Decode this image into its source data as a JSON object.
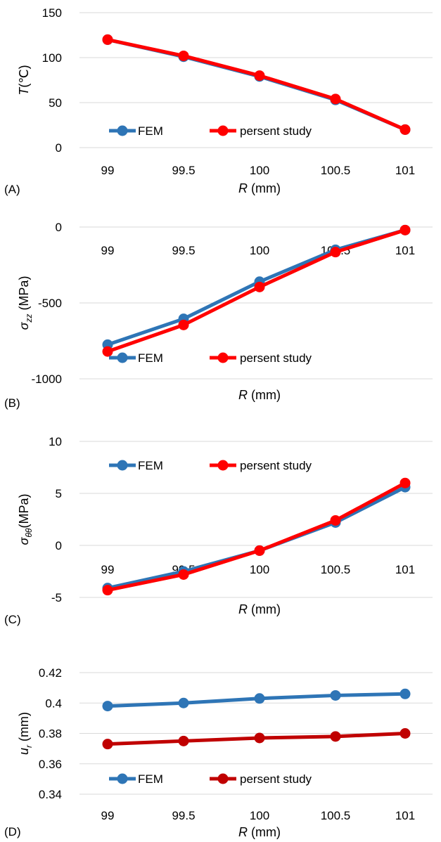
{
  "chart_data": [
    {
      "type": "line",
      "panel_label": "(A)",
      "xlabel_var": "R",
      "xlabel_unit": " (mm)",
      "ylabel_var": "T",
      "ylabel_unit": "(℃)",
      "ylabel_sub": "",
      "categories": [
        "99",
        "99.5",
        "100",
        "100.5",
        "101"
      ],
      "y_ticks": [
        0,
        50,
        100,
        150
      ],
      "ylim": [
        0,
        150
      ],
      "grid": true,
      "legend_position": "bottom-inside",
      "series": [
        {
          "name": "FEM",
          "color": "#2E75B6",
          "values": [
            120,
            101,
            79,
            53,
            20
          ]
        },
        {
          "name": "persent study",
          "color": "#FF0000",
          "values": [
            120,
            102,
            80,
            54,
            20
          ]
        }
      ]
    },
    {
      "type": "line",
      "panel_label": "(B)",
      "xlabel_var": "R",
      "xlabel_unit": " (mm)",
      "ylabel_var": "σ",
      "ylabel_unit": " (MPa)",
      "ylabel_sub": "zz",
      "categories": [
        "99",
        "99.5",
        "100",
        "100.5",
        "101"
      ],
      "y_ticks": [
        -1000,
        -500,
        0
      ],
      "ylim": [
        -1000,
        0
      ],
      "grid": true,
      "legend_position": "bottom-inside",
      "series": [
        {
          "name": "FEM",
          "color": "#2E75B6",
          "values": [
            -775,
            -605,
            -360,
            -150,
            -20
          ]
        },
        {
          "name": "persent study",
          "color": "#FF0000",
          "values": [
            -820,
            -645,
            -395,
            -165,
            -20
          ]
        }
      ]
    },
    {
      "type": "line",
      "panel_label": "(C)",
      "xlabel_var": "R",
      "xlabel_unit": " (mm)",
      "ylabel_var": "σ",
      "ylabel_unit": "(MPa)",
      "ylabel_sub": "θθ",
      "categories": [
        "99",
        "99.5",
        "100",
        "100.5",
        "101"
      ],
      "y_ticks": [
        -5,
        0,
        5,
        10
      ],
      "ylim": [
        -5,
        10
      ],
      "grid": true,
      "legend_position": "top-inside",
      "series": [
        {
          "name": "FEM",
          "color": "#2E75B6",
          "values": [
            -4.1,
            -2.5,
            -0.5,
            2.2,
            5.6
          ]
        },
        {
          "name": "persent study",
          "color": "#FF0000",
          "values": [
            -4.3,
            -2.8,
            -0.5,
            2.4,
            6.0
          ]
        }
      ]
    },
    {
      "type": "line",
      "panel_label": "(D)",
      "xlabel_var": "R",
      "xlabel_unit": " (mm)",
      "ylabel_var": "u",
      "ylabel_unit": " (mm)",
      "ylabel_sub": "r",
      "categories": [
        "99",
        "99.5",
        "100",
        "100.5",
        "101"
      ],
      "y_ticks": [
        0.34,
        0.36,
        0.38,
        0.4,
        0.42
      ],
      "y_tick_labels": [
        "0.34",
        "0.36",
        "0.38",
        "0.4",
        "0.42"
      ],
      "ylim": [
        0.34,
        0.42
      ],
      "grid": true,
      "legend_position": "bottom-inside",
      "series": [
        {
          "name": "FEM",
          "color": "#2E75B6",
          "values": [
            0.398,
            0.4,
            0.403,
            0.405,
            0.406
          ]
        },
        {
          "name": "persent study",
          "color": "#C00000",
          "values": [
            0.373,
            0.375,
            0.377,
            0.378,
            0.38
          ]
        }
      ]
    }
  ]
}
